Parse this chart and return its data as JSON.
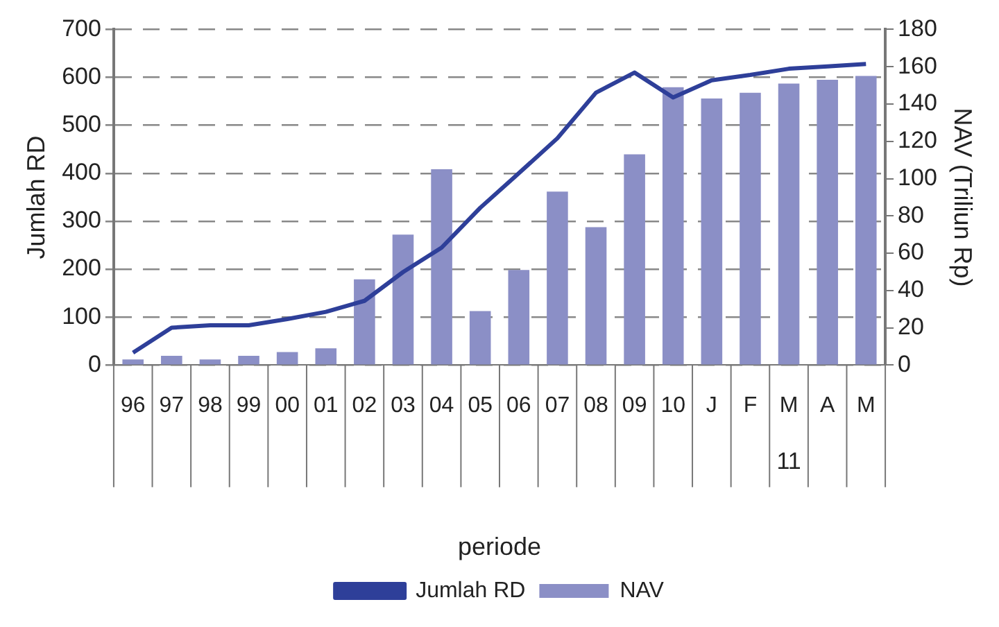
{
  "chart_data": {
    "type": "bar",
    "xlabel": "periode",
    "ylabel": "Jumlah RD",
    "y2label": "NAV (Triliun Rp)",
    "categories": [
      "96",
      "97",
      "98",
      "99",
      "00",
      "01",
      "02",
      "03",
      "04",
      "05",
      "06",
      "07",
      "08",
      "09",
      "10",
      "J",
      "F",
      "M",
      "A",
      "M"
    ],
    "series": [
      {
        "name": "NAV",
        "axis": "y2",
        "color": "#8b8fc6",
        "values": [
          3,
          5,
          3,
          5,
          7,
          9,
          46,
          70,
          105,
          29,
          51,
          93,
          74,
          113,
          149,
          143,
          146,
          151,
          153,
          155
        ]
      },
      {
        "name": "Jumlah RD",
        "type": "line",
        "color": "#2e3f99",
        "values": [
          26,
          78,
          83,
          83,
          96,
          111,
          134,
          194,
          245,
          328,
          400,
          473,
          568,
          610,
          558,
          594,
          605,
          618,
          623,
          628
        ]
      }
    ],
    "ylim": [
      0,
      700
    ],
    "yticks": [
      0,
      100,
      200,
      300,
      400,
      500,
      600,
      700
    ],
    "y2lim": [
      0,
      180
    ],
    "y2ticks": [
      0,
      20,
      40,
      60,
      80,
      100,
      120,
      140,
      160,
      180
    ],
    "grid": "y",
    "legend": "bottom",
    "marker": "none",
    "line_style": "solid",
    "annotations": [
      "11"
    ]
  }
}
